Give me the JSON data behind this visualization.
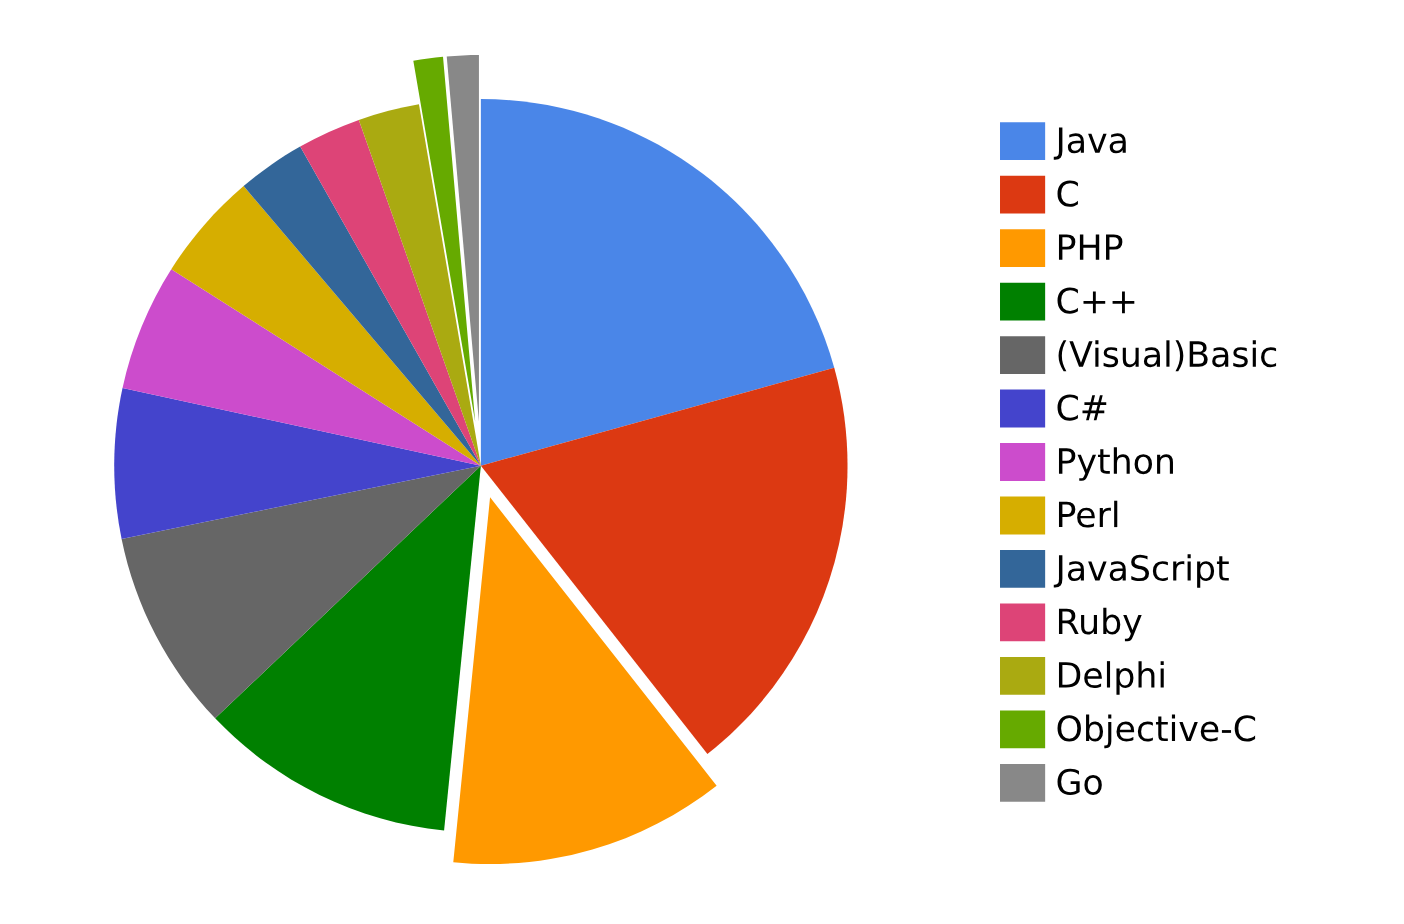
{
  "chart_data": {
    "type": "pie",
    "categories": [
      "Java",
      "C",
      "PHP",
      "C++",
      "(Visual)Basic",
      "C#",
      "Python",
      "Perl",
      "JavaScript",
      "Ruby",
      "Delphi",
      "Objective-C",
      "Go"
    ],
    "values": [
      20.7,
      18.7,
      12.2,
      11.3,
      8.9,
      6.6,
      5.6,
      4.8,
      3.0,
      2.8,
      2.7,
      1.3,
      1.4
    ],
    "colors": [
      "#4a86e8",
      "#dc3912",
      "#ff9900",
      "#008000",
      "#666666",
      "#4444cc",
      "#cc4ccc",
      "#d6ae00",
      "#336699",
      "#dd4477",
      "#aaaa11",
      "#66aa00",
      "#888888"
    ],
    "legend": "right"
  }
}
